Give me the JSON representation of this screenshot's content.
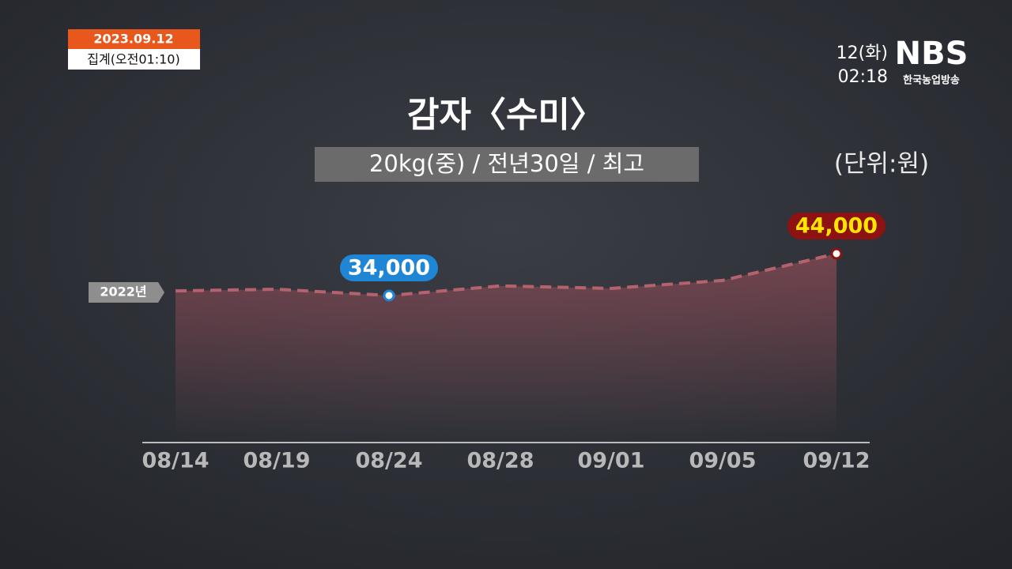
{
  "header": {
    "date": "2023.09.12",
    "tally": "집계(오전01:10)",
    "day": "12(화)",
    "time": "02:18",
    "logo": "NBS",
    "logo_sub": "한국농업방송"
  },
  "chart_data": {
    "type": "area",
    "title": "감자〈수미〉",
    "subtitle": "20kg(중) / 전년30일 / 최고",
    "unit": "(단위:원)",
    "categories": [
      "08/14",
      "08/19",
      "08/24",
      "08/28",
      "09/01",
      "09/05",
      "09/12"
    ],
    "series": [
      {
        "name": "2022년",
        "color": "#b4636e",
        "values": [
          35100,
          35500,
          34000,
          36300,
          35700,
          37600,
          44000
        ],
        "value_labels": [
          null,
          null,
          "34,000",
          null,
          null,
          null,
          "44,000"
        ]
      }
    ],
    "label_colors": {
      "min": "#1f86d6",
      "max": "#8e1212"
    }
  }
}
